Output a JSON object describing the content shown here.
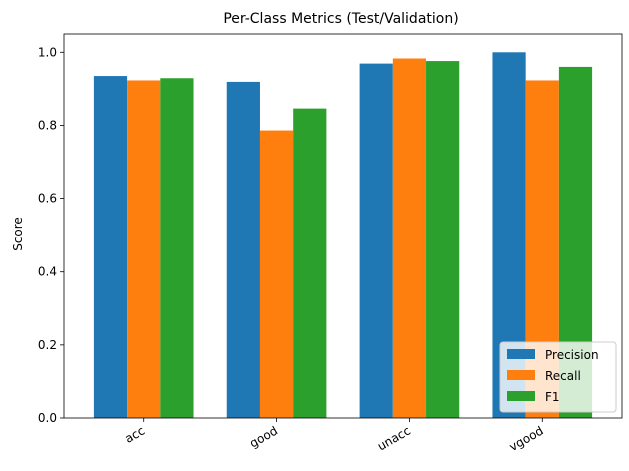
{
  "chart_data": {
    "type": "bar",
    "title": "Per-Class Metrics (Test/Validation)",
    "xlabel": "",
    "ylabel": "Score",
    "categories": [
      "acc",
      "good",
      "unacc",
      "vgood"
    ],
    "series": [
      {
        "name": "Precision",
        "color": "#1f77b4",
        "values": [
          0.935,
          0.919,
          0.969,
          1.0
        ]
      },
      {
        "name": "Recall",
        "color": "#ff7f0e",
        "values": [
          0.923,
          0.786,
          0.983,
          0.923
        ]
      },
      {
        "name": "F1",
        "color": "#2ca02c",
        "values": [
          0.929,
          0.846,
          0.976,
          0.96
        ]
      }
    ],
    "ylim": [
      0,
      1.05
    ],
    "yticks": [
      "0.0",
      "0.2",
      "0.4",
      "0.6",
      "0.8",
      "1.0"
    ],
    "grid": false,
    "legend_position": "lower right"
  }
}
